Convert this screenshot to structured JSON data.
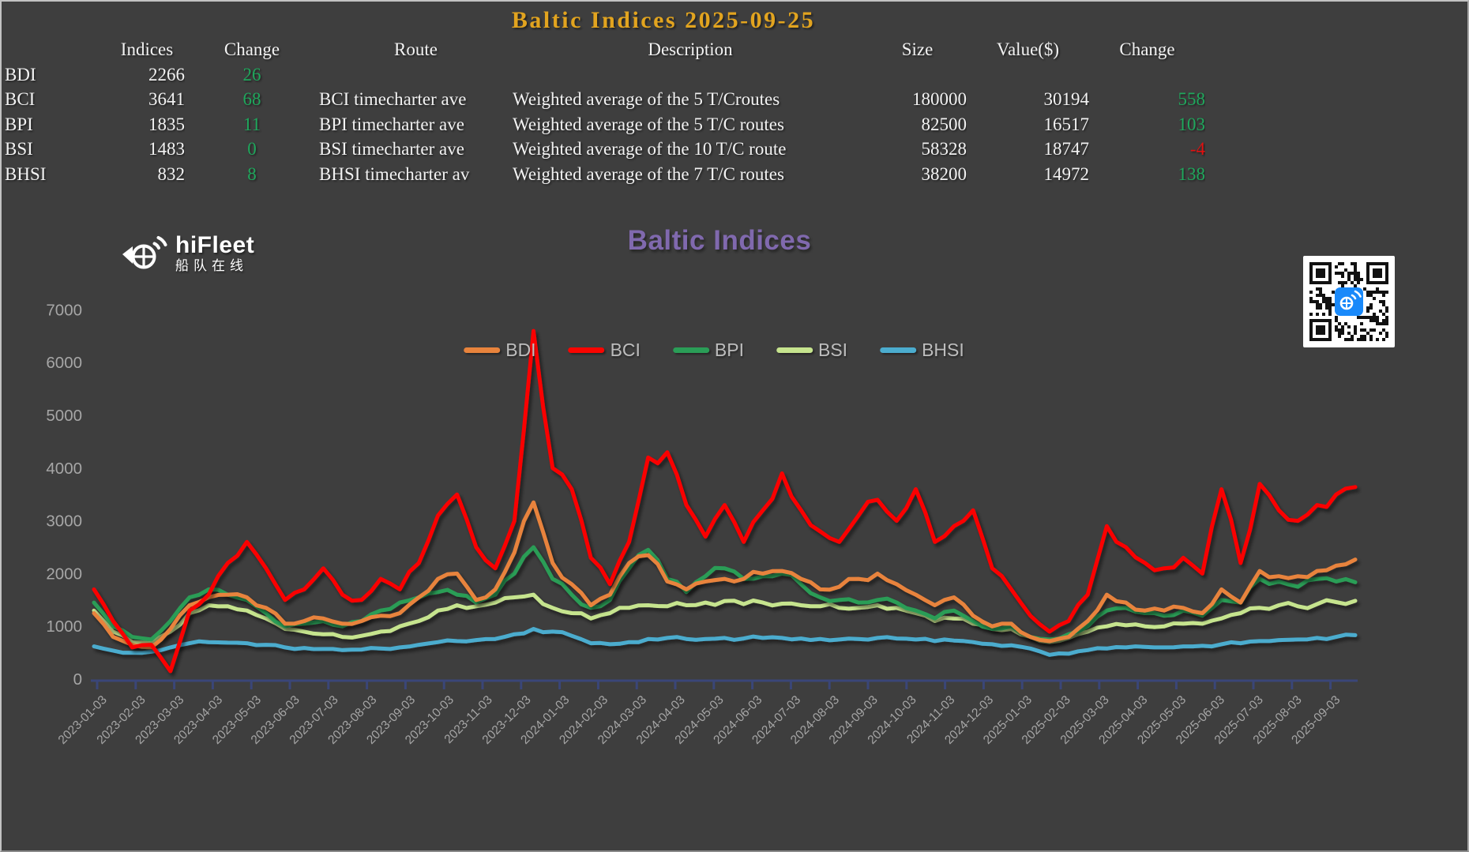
{
  "header": {
    "title": "Baltic Indices 2025-09-25"
  },
  "colors": {
    "background": "#3E3E3E",
    "title_gold": "#E2A41F",
    "chart_title_purple": "#8069AE",
    "up_green": "#1FA75C",
    "down_red": "#E31010",
    "axis_line": "#3A4678",
    "tick_label": "#A6A6A6",
    "qr_center_blue": "#1989FA"
  },
  "table": {
    "columns": [
      "",
      "Indices",
      "Change",
      "Route",
      "Description",
      "Size",
      "Value($)",
      "Change"
    ],
    "rows": [
      {
        "label": "BDI",
        "indices": "2266",
        "change": "26",
        "change_dir": "up",
        "route": "",
        "description": "",
        "size": "",
        "value": "",
        "change2": "",
        "change2_dir": "up"
      },
      {
        "label": "BCI",
        "indices": "3641",
        "change": "68",
        "change_dir": "up",
        "route": "BCI timecharter ave",
        "description": "Weighted average of the 5 T/Croutes",
        "size": "180000",
        "value": "30194",
        "change2": "558",
        "change2_dir": "up"
      },
      {
        "label": "BPI",
        "indices": "1835",
        "change": "11",
        "change_dir": "up",
        "route": "BPI timecharter ave",
        "description": "Weighted average of the 5 T/C routes",
        "size": "82500",
        "value": "16517",
        "change2": "103",
        "change2_dir": "up"
      },
      {
        "label": "BSI",
        "indices": "1483",
        "change": "0",
        "change_dir": "up",
        "route": "BSI timecharter ave",
        "description": "Weighted average of the 10 T/C route",
        "size": "58328",
        "value": "18747",
        "change2": "-4",
        "change2_dir": "down"
      },
      {
        "label": "BHSI",
        "indices": "832",
        "change": "8",
        "change_dir": "up",
        "route": "BHSI timecharter av",
        "description": "Weighted average of the 7 T/C routes",
        "size": "38200",
        "value": "14972",
        "change2": "138",
        "change2_dir": "up"
      }
    ]
  },
  "chart": {
    "title": "Baltic Indices"
  },
  "logo": {
    "name": "hiFleet",
    "subtitle": "船队在线"
  },
  "chart_data": {
    "type": "line",
    "title": "Baltic Indices",
    "legend_position": "top",
    "grid": false,
    "ylim": [
      0,
      7000
    ],
    "ytick_step": 1000,
    "x_start": "2023-01-03",
    "x_end": "2025-09-25",
    "sampling": "approx semi-monthly readings estimated from pixels",
    "x_ticks": [
      "2023-01-03",
      "2023-02-03",
      "2023-03-03",
      "2023-04-03",
      "2023-05-03",
      "2023-06-03",
      "2023-07-03",
      "2023-08-03",
      "2023-09-03",
      "2023-10-03",
      "2023-11-03",
      "2023-12-03",
      "2024-01-03",
      "2024-02-03",
      "2024-03-03",
      "2024-04-03",
      "2024-05-03",
      "2024-06-03",
      "2024-07-03",
      "2024-08-03",
      "2024-09-03",
      "2024-10-03",
      "2024-11-03",
      "2024-12-03",
      "2025-01-03",
      "2025-02-03",
      "2025-03-03",
      "2025-04-03",
      "2025-05-03",
      "2025-06-03",
      "2025-07-03",
      "2025-08-03",
      "2025-09-03"
    ],
    "series": [
      {
        "name": "BDI",
        "color": "#E8833C",
        "values": [
          1250,
          800,
          650,
          600,
          950,
          1400,
          1550,
          1600,
          1550,
          1350,
          1050,
          1100,
          1150,
          1050,
          1100,
          1200,
          1250,
          1550,
          1900,
          2000,
          1500,
          1700,
          2400,
          3350,
          2200,
          1800,
          1400,
          1600,
          2200,
          2350,
          1850,
          1700,
          1850,
          1900,
          1900,
          2000,
          2050,
          1900,
          1700,
          1750,
          1900,
          2000,
          1800,
          1600,
          1400,
          1550,
          1200,
          1000,
          1050,
          800,
          720,
          800,
          1100,
          1600,
          1450,
          1300,
          1300,
          1350,
          1250,
          1700,
          1450,
          2050,
          1950,
          1950,
          2050,
          2150,
          2266
        ]
      },
      {
        "name": "BCI",
        "color": "#FA0400",
        "values": [
          1700,
          1100,
          600,
          650,
          150,
          1300,
          1600,
          2200,
          2600,
          2100,
          1500,
          1700,
          2100,
          1600,
          1500,
          1900,
          1700,
          2200,
          3100,
          3500,
          2500,
          2100,
          3000,
          6600,
          4000,
          3600,
          2300,
          1800,
          2600,
          4200,
          4300,
          3300,
          2700,
          3300,
          2600,
          3200,
          3900,
          3200,
          2800,
          2600,
          3100,
          3400,
          3000,
          3600,
          2600,
          2900,
          3200,
          2100,
          1700,
          1200,
          900,
          1100,
          1600,
          2900,
          2500,
          2200,
          2100,
          2300,
          2000,
          3600,
          2200,
          3700,
          3200,
          3000,
          3300,
          3500,
          3641
        ]
      },
      {
        "name": "BPI",
        "color": "#2A9D57",
        "values": [
          1450,
          1000,
          800,
          750,
          1100,
          1550,
          1700,
          1600,
          1500,
          1250,
          1000,
          1050,
          1100,
          1000,
          1100,
          1300,
          1450,
          1550,
          1650,
          1600,
          1450,
          1600,
          2000,
          2500,
          1900,
          1600,
          1350,
          1500,
          2100,
          2450,
          1900,
          1650,
          1950,
          2100,
          1900,
          1950,
          2000,
          1800,
          1550,
          1500,
          1450,
          1500,
          1450,
          1300,
          1150,
          1300,
          1100,
          950,
          1000,
          800,
          750,
          850,
          1000,
          1300,
          1350,
          1250,
          1200,
          1300,
          1200,
          1500,
          1450,
          1900,
          1850,
          1750,
          1900,
          1850,
          1835
        ]
      },
      {
        "name": "BSI",
        "color": "#C6E48E",
        "values": [
          1300,
          900,
          700,
          680,
          900,
          1250,
          1400,
          1380,
          1300,
          1150,
          950,
          900,
          850,
          800,
          820,
          900,
          1000,
          1100,
          1300,
          1400,
          1380,
          1450,
          1550,
          1600,
          1350,
          1250,
          1150,
          1250,
          1350,
          1400,
          1380,
          1400,
          1450,
          1480,
          1420,
          1450,
          1430,
          1400,
          1380,
          1350,
          1350,
          1400,
          1350,
          1250,
          1100,
          1150,
          1050,
          950,
          950,
          800,
          700,
          780,
          900,
          1000,
          1020,
          1000,
          1000,
          1050,
          1050,
          1150,
          1250,
          1350,
          1400,
          1380,
          1420,
          1460,
          1483
        ]
      },
      {
        "name": "BHSI",
        "color": "#4BACCE",
        "values": [
          620,
          540,
          500,
          520,
          600,
          680,
          700,
          690,
          680,
          650,
          600,
          590,
          570,
          550,
          560,
          580,
          600,
          650,
          700,
          720,
          740,
          760,
          850,
          950,
          900,
          820,
          680,
          660,
          700,
          760,
          780,
          760,
          760,
          780,
          770,
          780,
          780,
          770,
          760,
          750,
          760,
          780,
          770,
          750,
          720,
          730,
          700,
          660,
          640,
          580,
          460,
          480,
          550,
          580,
          600,
          610,
          600,
          620,
          630,
          660,
          680,
          720,
          740,
          750,
          780,
          800,
          832
        ]
      }
    ]
  }
}
